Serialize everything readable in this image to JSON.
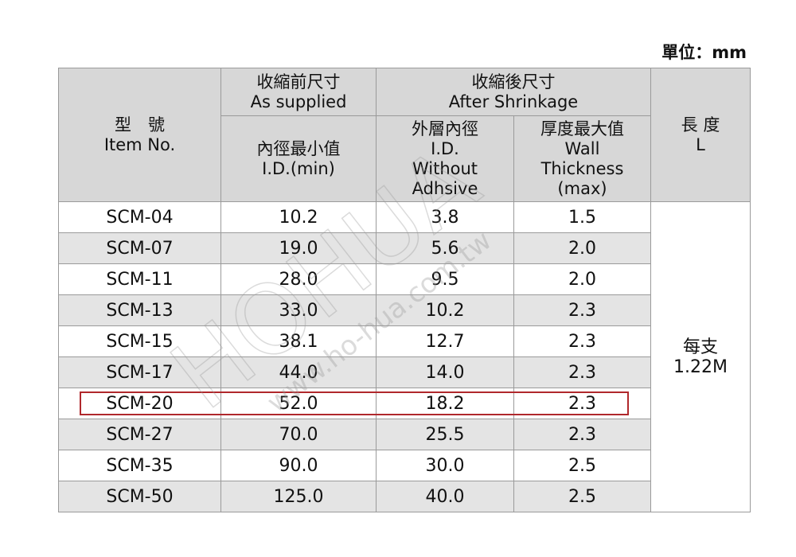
{
  "unit": "單位：mm",
  "watermark": {
    "brand": "HOHUA",
    "site": "www.ho-hua.com.tw"
  },
  "table": {
    "headers": {
      "item": [
        "型　號",
        "Item No."
      ],
      "before": [
        "收縮前尺寸",
        "As supplied"
      ],
      "before_id": [
        "內徑最小值",
        "I.D.(min)"
      ],
      "after": [
        "收縮後尺寸",
        "After Shrinkage"
      ],
      "after_id": [
        "外層內徑",
        "I.D.",
        "Without",
        "Adhsive"
      ],
      "wall": [
        "厚度最大值",
        "Wall",
        "Thickness",
        "(max)"
      ],
      "length": [
        "長 度",
        "L"
      ]
    },
    "rows": [
      [
        "SCM-04",
        "10.2",
        "3.8",
        "1.5"
      ],
      [
        "SCM-07",
        "19.0",
        "5.6",
        "2.0"
      ],
      [
        "SCM-11",
        "28.0",
        "9.5",
        "2.0"
      ],
      [
        "SCM-13",
        "33.0",
        "10.2",
        "2.3"
      ],
      [
        "SCM-15",
        "38.1",
        "12.7",
        "2.3"
      ],
      [
        "SCM-17",
        "44.0",
        "14.0",
        "2.3"
      ],
      [
        "SCM-20",
        "52.0",
        "18.2",
        "2.3"
      ],
      [
        "SCM-27",
        "70.0",
        "25.5",
        "2.3"
      ],
      [
        "SCM-35",
        "90.0",
        "30.0",
        "2.5"
      ],
      [
        "SCM-50",
        "125.0",
        "40.0",
        "2.5"
      ]
    ],
    "length_value": [
      "每支",
      "1.22M"
    ]
  }
}
